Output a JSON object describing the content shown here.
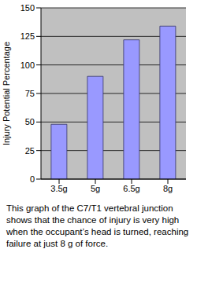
{
  "chart_data": {
    "type": "bar",
    "y_label": "Injury Potential Percentage",
    "categories": [
      "3.5g",
      "5g",
      "6.5g",
      "8g"
    ],
    "values": [
      48,
      90,
      122,
      134
    ],
    "color": "#9999ff",
    "ylim": [
      0,
      150
    ],
    "yticks": [
      0,
      25,
      50,
      75,
      100,
      125,
      150
    ],
    "grid": true,
    "annotations": [
      "This graph of the C7/T1 vertebral junction shows that the chance of injury is very high when the occupant’s head is turned, reaching failure at just 8 g of force."
    ]
  }
}
